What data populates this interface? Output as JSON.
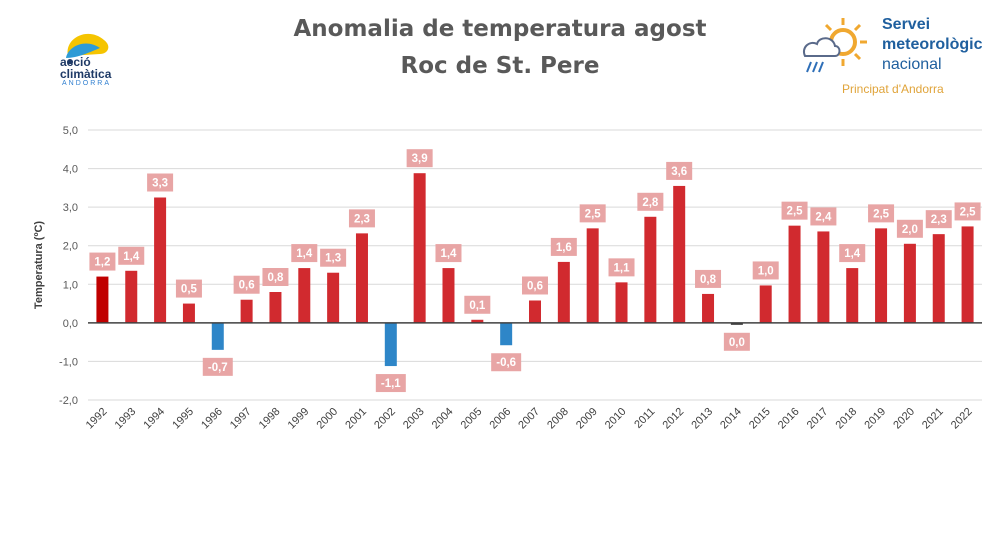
{
  "header": {
    "title_line1": "Anomalia de temperatura agost",
    "title_line2": "Roc de St. Pere"
  },
  "logo_left": {
    "line1": "acció",
    "line2": "climàtica",
    "line3": "ANDORRA",
    "colors": [
      "#f5c400",
      "#2e9bd6",
      "#1f3a66"
    ]
  },
  "logo_right": {
    "line1": "Servei",
    "line2": "meteorològic",
    "line3": "nacional",
    "line4": "Principat d'Andorra",
    "icon": "sun-cloud-rain-icon"
  },
  "chart_data": {
    "type": "bar",
    "ylabel": "Temperatura (ºC)",
    "xlabel": "",
    "ylim": [
      -2.0,
      5.0
    ],
    "y_ticks": [
      "-2,0",
      "-1,0",
      "0,0",
      "1,0",
      "2,0",
      "3,0",
      "4,0",
      "5,0"
    ],
    "grid": true,
    "categories": [
      "1992",
      "1993",
      "1994",
      "1995",
      "1996",
      "1997",
      "1998",
      "1999",
      "2000",
      "2001",
      "2002",
      "2003",
      "2004",
      "2005",
      "2006",
      "2007",
      "2008",
      "2009",
      "2010",
      "2011",
      "2012",
      "2013",
      "2014",
      "2015",
      "2016",
      "2017",
      "2018",
      "2019",
      "2020",
      "2021",
      "2022"
    ],
    "values": [
      1.2,
      1.35,
      3.25,
      0.5,
      -0.7,
      0.6,
      0.8,
      1.42,
      1.3,
      2.32,
      -1.12,
      3.88,
      1.42,
      0.08,
      -0.58,
      0.58,
      1.58,
      2.45,
      1.05,
      2.75,
      3.55,
      0.75,
      -0.05,
      0.97,
      2.52,
      2.37,
      1.42,
      2.45,
      2.05,
      2.3,
      2.5
    ],
    "data_labels": [
      "1,2",
      "1,4",
      "3,3",
      "0,5",
      "-0,7",
      "0,6",
      "0,8",
      "1,4",
      "1,3",
      "2,3",
      "-1,1",
      "3,9",
      "1,4",
      "0,1",
      "-0,6",
      "0,6",
      "1,6",
      "2,5",
      "1,1",
      "2,8",
      "3,6",
      "0,8",
      "0,0",
      "1,0",
      "2,5",
      "2,4",
      "1,4",
      "2,5",
      "2,0",
      "2,3",
      "2,5"
    ],
    "colors": {
      "positive": "#d12a2f",
      "first_bar": "#c00000",
      "negative": "#2e86c8",
      "near_zero": "#404040",
      "label_bg": "#e8a5a5",
      "label_text": "#ffffff"
    }
  }
}
